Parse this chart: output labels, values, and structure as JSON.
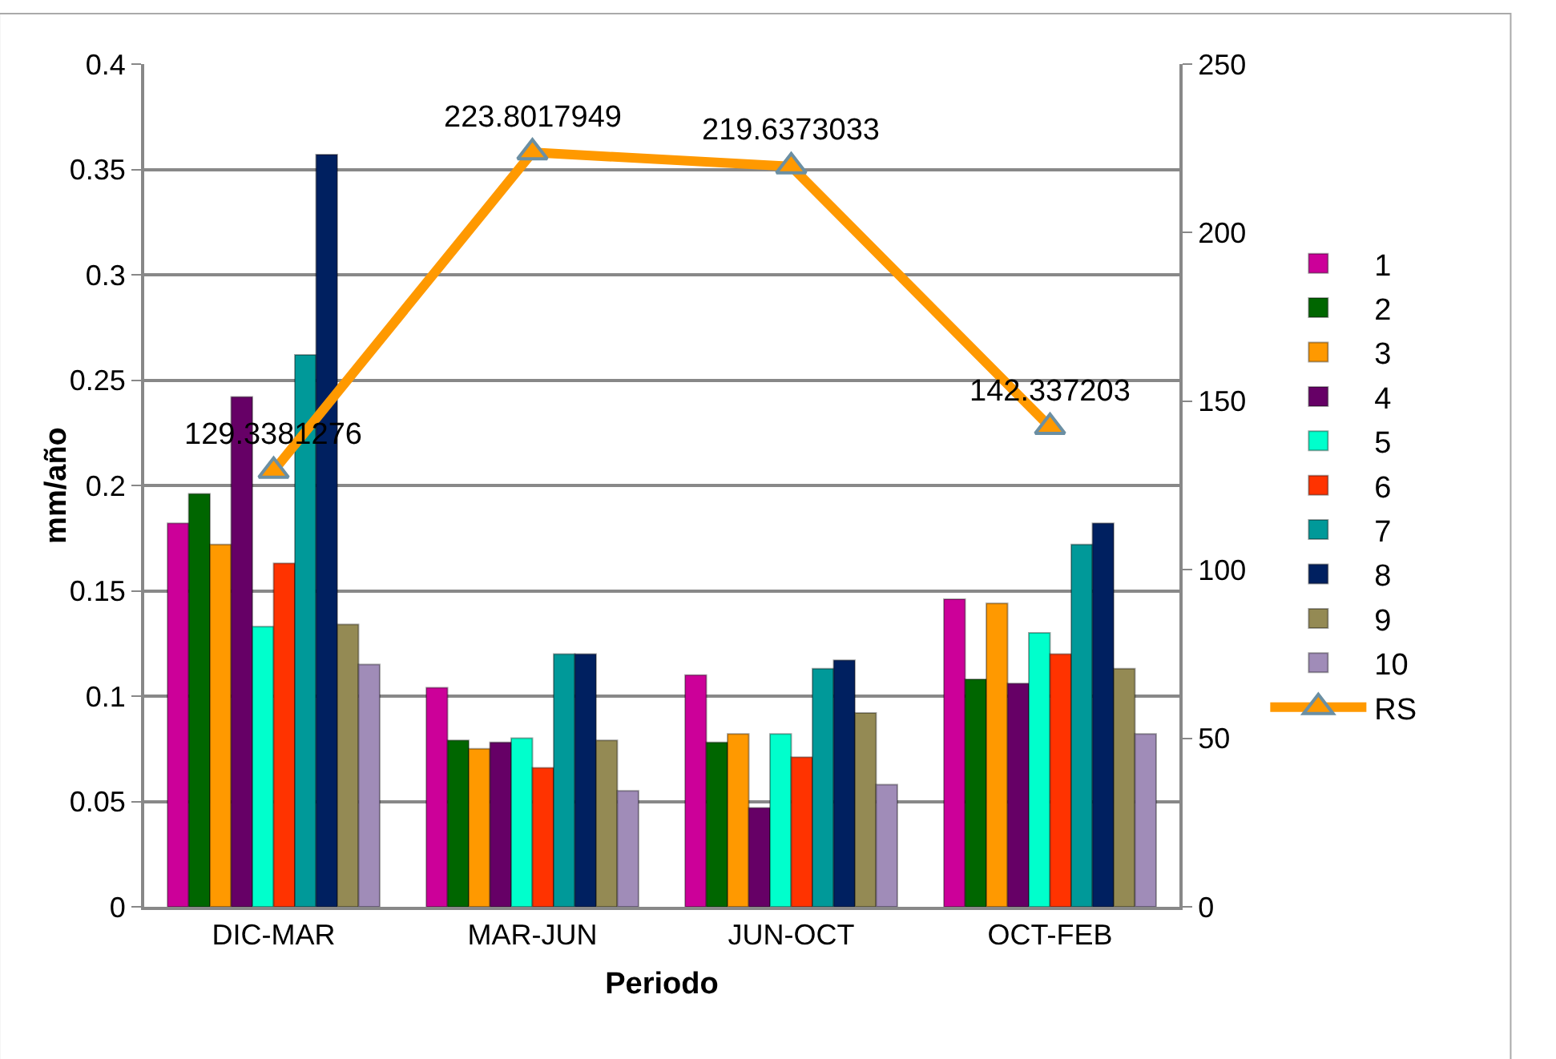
{
  "chart_data": {
    "type": "bar",
    "xlabel": "Periodo",
    "ylabel": "mm/año",
    "categories": [
      "DIC-MAR",
      "MAR-JUN",
      "JUN-OCT",
      "OCT-FEB"
    ],
    "series": [
      {
        "name": "1",
        "color": "#cc0099",
        "values": [
          0.182,
          0.104,
          0.11,
          0.146
        ]
      },
      {
        "name": "2",
        "color": "#006600",
        "values": [
          0.196,
          0.079,
          0.078,
          0.108
        ]
      },
      {
        "name": "3",
        "color": "#ff9900",
        "values": [
          0.172,
          0.075,
          0.082,
          0.144
        ]
      },
      {
        "name": "4",
        "color": "#660066",
        "values": [
          0.242,
          0.078,
          0.047,
          0.106
        ]
      },
      {
        "name": "5",
        "color": "#00ffcc",
        "values": [
          0.133,
          0.08,
          0.082,
          0.13
        ]
      },
      {
        "name": "6",
        "color": "#ff3300",
        "values": [
          0.163,
          0.066,
          0.071,
          0.12
        ]
      },
      {
        "name": "7",
        "color": "#009999",
        "values": [
          0.262,
          0.12,
          0.113,
          0.172
        ]
      },
      {
        "name": "8",
        "color": "#002060",
        "values": [
          0.357,
          0.12,
          0.117,
          0.182
        ]
      },
      {
        "name": "9",
        "color": "#948a54",
        "values": [
          0.134,
          0.079,
          0.092,
          0.113
        ]
      },
      {
        "name": "10",
        "color": "#a08cb8",
        "values": [
          0.115,
          0.055,
          0.058,
          0.082
        ]
      },
      {
        "name": "RS",
        "type": "line",
        "axis": "y2",
        "color": "#ff9900",
        "marker": "triangle",
        "values": [
          129.3381276,
          223.8017949,
          219.6373033,
          142.337203
        ],
        "value_labels": [
          "129.3381276",
          "223.8017949",
          "219.6373033",
          "142.337203"
        ]
      }
    ],
    "ylim": [
      0,
      0.4
    ],
    "yticks": [
      {
        "value": 0,
        "label": "0"
      },
      0.05,
      0.1,
      0.15,
      0.2,
      0.25,
      0.3,
      0.35,
      0.4
    ],
    "y2lim": [
      0,
      250
    ],
    "y2ticks": [
      0,
      50,
      100,
      150,
      200,
      250
    ],
    "grid": "y",
    "legend": "right"
  }
}
